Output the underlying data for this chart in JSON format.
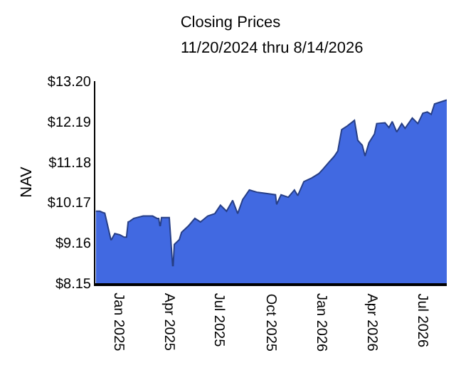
{
  "chart_data": {
    "type": "area",
    "title": "Closing Prices",
    "subtitle": "11/20/2024 thru 8/14/2026",
    "ylabel": "NAV",
    "x": [
      "2024-11-21",
      "2024-11-28",
      "2024-12-03",
      "2024-12-07",
      "2024-12-18",
      "2024-12-19",
      "2024-12-25",
      "2025-01-03",
      "2025-01-11",
      "2025-01-15",
      "2025-01-18",
      "2025-01-21",
      "2025-01-28",
      "2025-02-14",
      "2025-03-03",
      "2025-03-11",
      "2025-03-14",
      "2025-03-16",
      "2025-03-17",
      "2025-03-19",
      "2025-04-02",
      "2025-04-08",
      "2025-04-09",
      "2025-04-11",
      "2025-04-20",
      "2025-04-24",
      "2025-05-07",
      "2025-05-18",
      "2025-05-28",
      "2025-06-10",
      "2025-06-23",
      "2025-07-03",
      "2025-07-14",
      "2025-07-25",
      "2025-08-03",
      "2025-08-12",
      "2025-08-24",
      "2025-09-08",
      "2025-09-25",
      "2025-10-10",
      "2025-10-12",
      "2025-10-20",
      "2025-11-02",
      "2025-11-13",
      "2025-11-19",
      "2025-11-30",
      "2025-12-14",
      "2025-12-27",
      "2026-01-04",
      "2026-01-15",
      "2026-01-23",
      "2026-01-30",
      "2026-02-06",
      "2026-02-16",
      "2026-03-01",
      "2026-03-07",
      "2026-03-15",
      "2026-03-20",
      "2026-03-27",
      "2026-04-06",
      "2026-04-10",
      "2026-04-25",
      "2026-05-02",
      "2026-05-08",
      "2026-05-16",
      "2026-05-25",
      "2026-05-31",
      "2026-06-13",
      "2026-06-23",
      "2026-07-02",
      "2026-07-10",
      "2026-07-17",
      "2026-07-23",
      "2026-08-01",
      "2026-08-14"
    ],
    "series": [
      {
        "color": "#4169e1",
        "values": [
          9.95,
          9.95,
          9.92,
          9.9,
          9.24,
          9.24,
          9.39,
          9.36,
          9.3,
          9.3,
          9.68,
          9.7,
          9.77,
          9.83,
          9.83,
          9.77,
          9.77,
          9.59,
          9.59,
          9.79,
          9.79,
          8.59,
          8.59,
          9.12,
          9.24,
          9.42,
          9.59,
          9.77,
          9.68,
          9.83,
          9.89,
          10.1,
          9.95,
          10.22,
          9.89,
          10.24,
          10.48,
          10.42,
          10.39,
          10.36,
          10.12,
          10.36,
          10.3,
          10.48,
          10.34,
          10.69,
          10.78,
          10.89,
          11.01,
          11.19,
          11.31,
          11.45,
          11.99,
          12.08,
          12.22,
          11.72,
          11.6,
          11.33,
          11.66,
          11.88,
          12.14,
          12.16,
          12.04,
          12.19,
          11.93,
          12.14,
          12.02,
          12.28,
          12.14,
          12.4,
          12.43,
          12.37,
          12.63,
          12.67,
          12.73
        ]
      }
    ],
    "xlim": [
      "2024-11-20",
      "2026-08-14"
    ],
    "xticks": [
      {
        "value": "2025-01-01",
        "label": "Jan 2025"
      },
      {
        "value": "2025-04-01",
        "label": "Apr 2025"
      },
      {
        "value": "2025-07-01",
        "label": "Jul 2025"
      },
      {
        "value": "2025-10-01",
        "label": "Oct 2025"
      },
      {
        "value": "2026-01-01",
        "label": "Jan 2026"
      },
      {
        "value": "2026-04-01",
        "label": "Apr 2026"
      },
      {
        "value": "2026-07-01",
        "label": "Jul 2026"
      }
    ],
    "ylim": [
      8.15,
      13.2
    ],
    "yticks": [
      {
        "value": 8.15,
        "label": "$8.15"
      },
      {
        "value": 9.16,
        "label": "$9.16"
      },
      {
        "value": 10.17,
        "label": "$10.17"
      },
      {
        "value": 11.18,
        "label": "$11.18"
      },
      {
        "value": 12.19,
        "label": "$12.19"
      },
      {
        "value": 13.2,
        "label": "$13.20"
      }
    ],
    "grid": false
  }
}
